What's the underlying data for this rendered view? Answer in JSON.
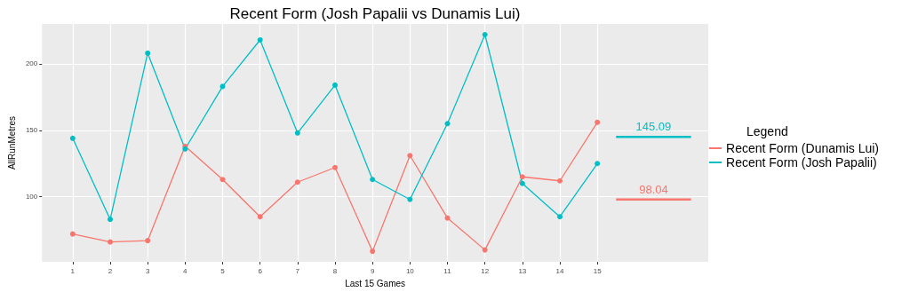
{
  "chart_data": {
    "type": "line",
    "title": "Recent Form (Josh Papalii vs Dunamis Lui)",
    "xlabel": "Last 15 Games",
    "ylabel": "AllRunMetres",
    "legend_title": "Legend",
    "x": [
      1,
      2,
      3,
      4,
      5,
      6,
      7,
      8,
      9,
      10,
      11,
      12,
      13,
      14,
      15
    ],
    "series": [
      {
        "name": "Recent Form (Dunamis Lui)",
        "color": "#f8766d",
        "marker": "circle",
        "values": [
          72,
          66,
          67,
          138,
          113,
          85,
          111,
          122,
          59,
          131,
          84,
          60,
          115,
          112,
          156
        ]
      },
      {
        "name": "Recent Form (Josh Papalii)",
        "color": "#00bfc4",
        "marker": "circle",
        "values": [
          144,
          83,
          208,
          136,
          183,
          218,
          148,
          184,
          113,
          98,
          155,
          222,
          110,
          85,
          125
        ]
      },
      {
        "color": "#00bfc4",
        "marker": "none",
        "x": [
          15.5,
          16.5,
          17.5
        ],
        "values": [
          145.09,
          145.09,
          145.09
        ],
        "value_labels": [
          null,
          "145.09",
          null
        ]
      },
      {
        "color": "#f8766d",
        "marker": "none",
        "x": [
          15.5,
          16.5,
          17.5
        ],
        "values": [
          98.04,
          98.04,
          98.04
        ],
        "value_labels": [
          null,
          "98.04",
          null
        ]
      }
    ],
    "xlim": [
      0.18,
      17.96
    ],
    "xticks": [
      1,
      2,
      3,
      4,
      5,
      6,
      7,
      8,
      9,
      10,
      11,
      12,
      13,
      14,
      15
    ],
    "ylim": [
      51,
      230
    ],
    "yticks": [
      100,
      150,
      200
    ],
    "grid": true,
    "legend": "right"
  }
}
